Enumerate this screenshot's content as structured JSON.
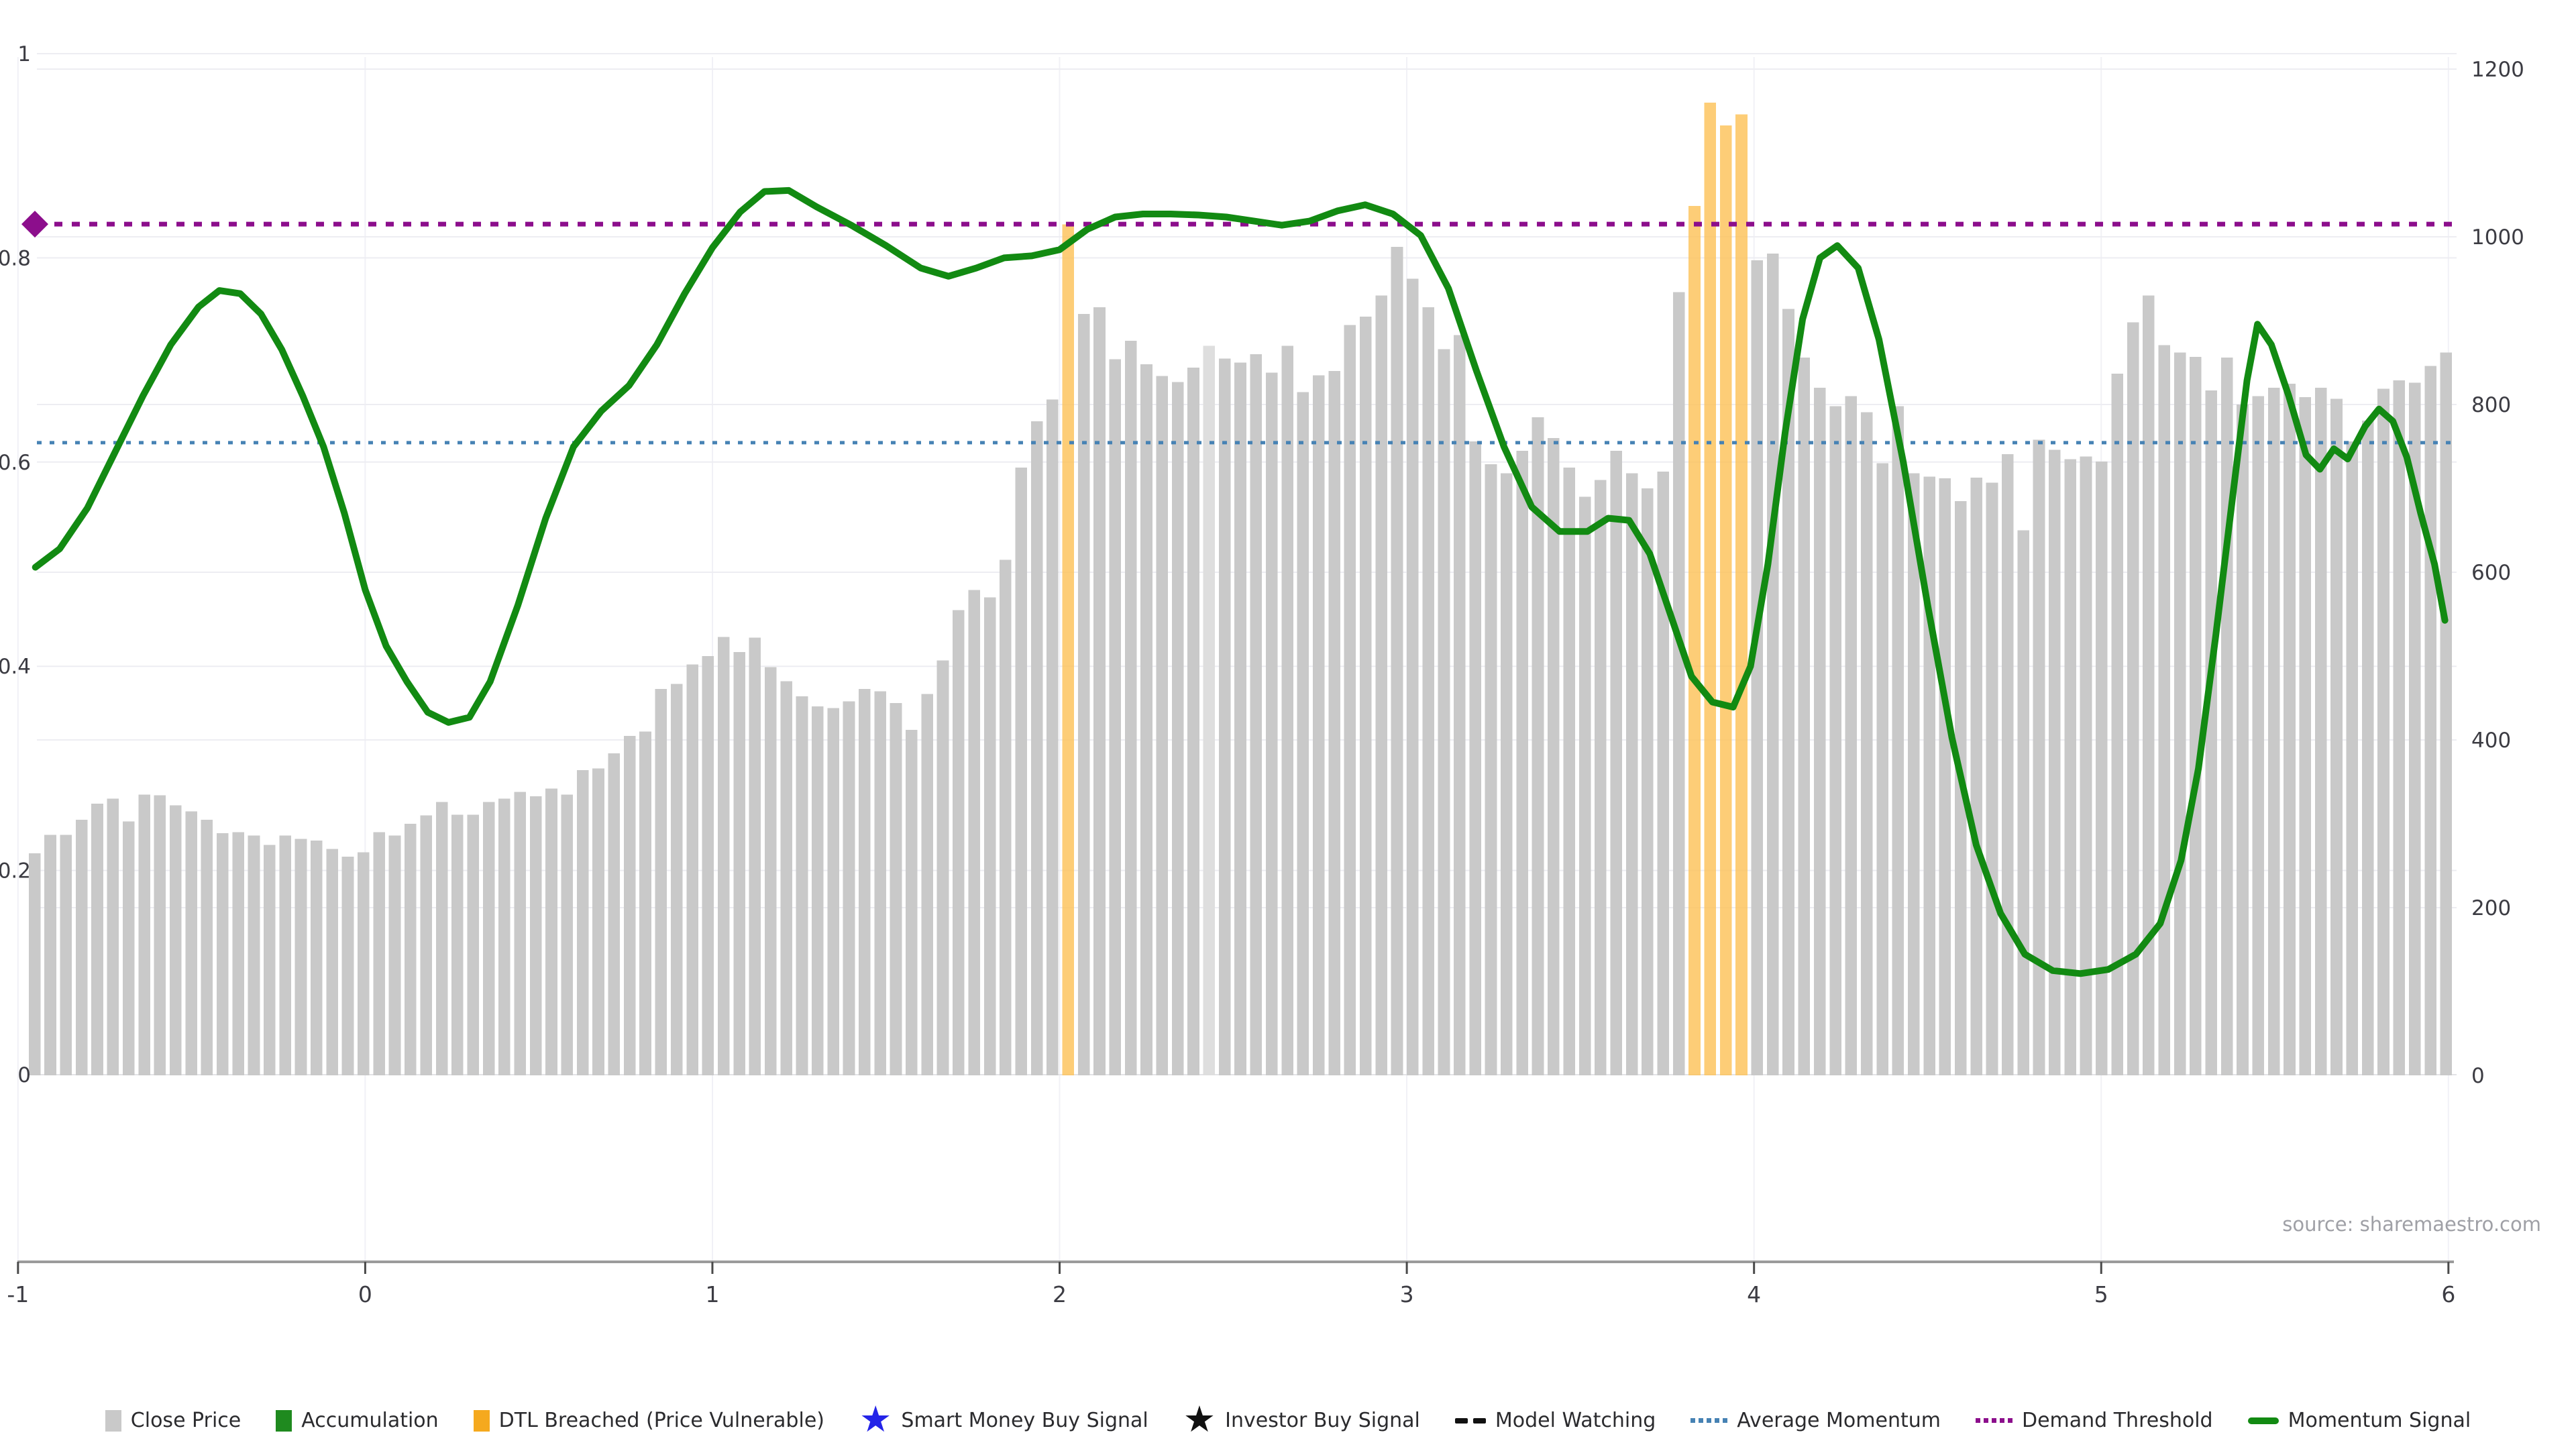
{
  "source": {
    "text": "source: sharemaestro.com"
  },
  "legend": {
    "items": [
      {
        "label": "Close Price",
        "marker": "square",
        "color": "#c9c9c9"
      },
      {
        "label": "Accumulation",
        "marker": "square",
        "color": "#1f8a1f"
      },
      {
        "label": "DTL Breached (Price Vulnerable)",
        "marker": "square",
        "color": "#f5a91e"
      },
      {
        "label": "Smart Money Buy Signal",
        "marker": "star",
        "color": "#2424e8"
      },
      {
        "label": "Investor Buy Signal",
        "marker": "star",
        "color": "#111111"
      },
      {
        "label": "Model Watching",
        "marker": "dash",
        "color": "#111111"
      },
      {
        "label": "Average Momentum",
        "marker": "dots",
        "color": "#4682b4"
      },
      {
        "label": "Demand Threshold",
        "marker": "dots",
        "color": "#8c0e8c"
      },
      {
        "label": "Momentum Signal",
        "marker": "line",
        "color": "#128a12"
      }
    ]
  },
  "chart_data": {
    "type": "bar",
    "title": "",
    "xlabel": "",
    "ylabel_left": "",
    "ylabel_right": "",
    "x_axis": {
      "ticks": [
        -1,
        0,
        1,
        2,
        3,
        4,
        5,
        6
      ],
      "range": [
        -1.02,
        6.03
      ],
      "grid": true
    },
    "y_axis_left": {
      "ticks": [
        0,
        0.2,
        0.4,
        0.6,
        0.8,
        1
      ],
      "tick_labels": [
        "0",
        "0.2",
        "0.4",
        "0.6",
        "0.8",
        "1"
      ],
      "range": [
        0,
        1.05
      ],
      "grid": true
    },
    "y_axis_right": {
      "ticks": [
        0,
        200,
        400,
        600,
        800,
        1000,
        1200
      ],
      "tick_labels": [
        "0",
        "200",
        "400",
        "600",
        "800",
        "1000",
        "1200"
      ],
      "range": [
        0,
        1260
      ],
      "grid": true
    },
    "bars": {
      "name": "Close Price",
      "axis": "right",
      "color": "#c9c9c9",
      "x_first": -0.952,
      "x_step": 0.0451,
      "values": [
        265,
        287,
        287,
        305,
        324,
        330,
        303,
        335,
        334,
        322,
        315,
        305,
        289,
        290,
        286,
        275,
        286,
        282,
        280,
        270,
        261,
        266,
        290,
        286,
        300,
        310,
        326,
        311,
        311,
        326,
        330,
        338,
        333,
        342,
        335,
        364,
        366,
        384,
        405,
        410,
        461,
        467,
        490,
        500,
        523,
        505,
        522,
        487,
        470,
        452,
        440,
        438,
        446,
        461,
        458,
        444,
        412,
        455,
        495,
        555,
        579,
        570,
        615,
        725,
        780,
        806,
        1015,
        908,
        916,
        854,
        876,
        848,
        834,
        827,
        844,
        870,
        855,
        850,
        860,
        838,
        870,
        815,
        835,
        840,
        895,
        905,
        930,
        988,
        950,
        916,
        866,
        883,
        756,
        729,
        718,
        745,
        785,
        760,
        725,
        690,
        710,
        745,
        718,
        700,
        720,
        934,
        1037,
        1160,
        1133,
        1146,
        972,
        980,
        914,
        856,
        820,
        798,
        810,
        791,
        730,
        798,
        718,
        714,
        712,
        685,
        713,
        707,
        741,
        650,
        758,
        746,
        735,
        738,
        732,
        837,
        898,
        930,
        871,
        862,
        857,
        817,
        856,
        800,
        810,
        820,
        825,
        809,
        820,
        807,
        756,
        781,
        819,
        829,
        826,
        846,
        862
      ],
      "dtl_breached_indices": [
        66,
        106,
        107,
        108,
        109
      ],
      "dtl_breached_color": "#fdc155",
      "watch_bar_index": 75,
      "watch_bar_color": "#dedede"
    },
    "momentum_signal": {
      "name": "Momentum Signal",
      "axis": "left",
      "color": "#128a12",
      "points": [
        [
          -0.95,
          0.497
        ],
        [
          -0.88,
          0.515
        ],
        [
          -0.8,
          0.555
        ],
        [
          -0.72,
          0.61
        ],
        [
          -0.64,
          0.665
        ],
        [
          -0.56,
          0.715
        ],
        [
          -0.48,
          0.752
        ],
        [
          -0.42,
          0.768
        ],
        [
          -0.36,
          0.765
        ],
        [
          -0.3,
          0.745
        ],
        [
          -0.24,
          0.71
        ],
        [
          -0.18,
          0.665
        ],
        [
          -0.12,
          0.615
        ],
        [
          -0.06,
          0.55
        ],
        [
          0.0,
          0.475
        ],
        [
          0.06,
          0.42
        ],
        [
          0.12,
          0.385
        ],
        [
          0.18,
          0.355
        ],
        [
          0.24,
          0.345
        ],
        [
          0.3,
          0.35
        ],
        [
          0.36,
          0.385
        ],
        [
          0.44,
          0.46
        ],
        [
          0.52,
          0.545
        ],
        [
          0.6,
          0.615
        ],
        [
          0.68,
          0.65
        ],
        [
          0.76,
          0.675
        ],
        [
          0.84,
          0.715
        ],
        [
          0.92,
          0.765
        ],
        [
          1.0,
          0.81
        ],
        [
          1.08,
          0.845
        ],
        [
          1.15,
          0.865
        ],
        [
          1.22,
          0.866
        ],
        [
          1.3,
          0.85
        ],
        [
          1.4,
          0.832
        ],
        [
          1.5,
          0.812
        ],
        [
          1.6,
          0.79
        ],
        [
          1.68,
          0.782
        ],
        [
          1.76,
          0.79
        ],
        [
          1.84,
          0.8
        ],
        [
          1.92,
          0.802
        ],
        [
          2.0,
          0.808
        ],
        [
          2.08,
          0.828
        ],
        [
          2.16,
          0.84
        ],
        [
          2.24,
          0.843
        ],
        [
          2.32,
          0.843
        ],
        [
          2.4,
          0.842
        ],
        [
          2.48,
          0.84
        ],
        [
          2.56,
          0.836
        ],
        [
          2.64,
          0.832
        ],
        [
          2.72,
          0.836
        ],
        [
          2.8,
          0.846
        ],
        [
          2.88,
          0.852
        ],
        [
          2.96,
          0.843
        ],
        [
          3.04,
          0.822
        ],
        [
          3.12,
          0.77
        ],
        [
          3.2,
          0.69
        ],
        [
          3.28,
          0.615
        ],
        [
          3.36,
          0.556
        ],
        [
          3.44,
          0.532
        ],
        [
          3.52,
          0.532
        ],
        [
          3.58,
          0.545
        ],
        [
          3.64,
          0.543
        ],
        [
          3.7,
          0.51
        ],
        [
          3.76,
          0.45
        ],
        [
          3.82,
          0.39
        ],
        [
          3.88,
          0.365
        ],
        [
          3.94,
          0.36
        ],
        [
          3.99,
          0.4
        ],
        [
          4.04,
          0.5
        ],
        [
          4.09,
          0.63
        ],
        [
          4.14,
          0.74
        ],
        [
          4.19,
          0.8
        ],
        [
          4.24,
          0.812
        ],
        [
          4.3,
          0.79
        ],
        [
          4.36,
          0.72
        ],
        [
          4.43,
          0.6
        ],
        [
          4.5,
          0.46
        ],
        [
          4.57,
          0.33
        ],
        [
          4.64,
          0.225
        ],
        [
          4.71,
          0.158
        ],
        [
          4.78,
          0.118
        ],
        [
          4.86,
          0.102
        ],
        [
          4.94,
          0.099
        ],
        [
          5.02,
          0.103
        ],
        [
          5.1,
          0.118
        ],
        [
          5.17,
          0.148
        ],
        [
          5.23,
          0.21
        ],
        [
          5.28,
          0.3
        ],
        [
          5.33,
          0.43
        ],
        [
          5.38,
          0.57
        ],
        [
          5.42,
          0.68
        ],
        [
          5.45,
          0.735
        ],
        [
          5.49,
          0.715
        ],
        [
          5.54,
          0.665
        ],
        [
          5.59,
          0.607
        ],
        [
          5.63,
          0.593
        ],
        [
          5.67,
          0.613
        ],
        [
          5.71,
          0.603
        ],
        [
          5.76,
          0.635
        ],
        [
          5.8,
          0.652
        ],
        [
          5.84,
          0.64
        ],
        [
          5.88,
          0.605
        ],
        [
          5.92,
          0.55
        ],
        [
          5.96,
          0.5
        ],
        [
          5.99,
          0.445
        ]
      ]
    },
    "average_momentum": {
      "name": "Average Momentum",
      "axis": "left",
      "value": 0.619,
      "color": "#4682b4",
      "style": "dotted"
    },
    "demand_threshold": {
      "name": "Demand Threshold",
      "axis": "left",
      "value": 0.833,
      "color": "#8c0e8c",
      "style": "dotted",
      "marker": "diamond-left"
    },
    "legend_position": "bottom-center"
  }
}
